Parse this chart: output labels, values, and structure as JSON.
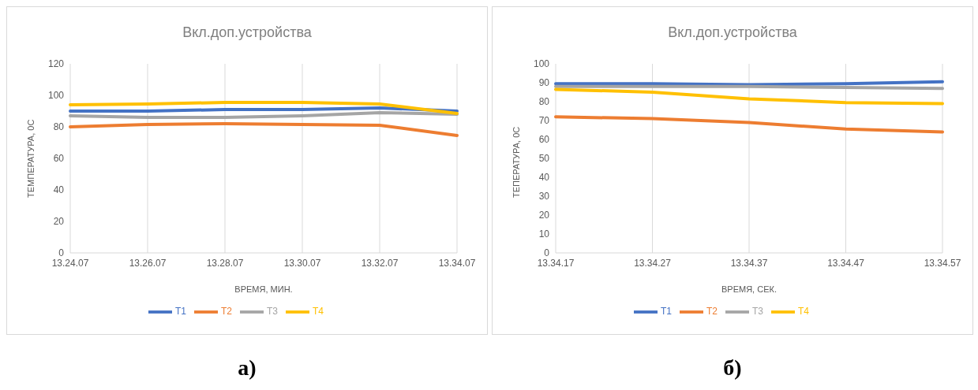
{
  "chart_data": [
    {
      "type": "line",
      "title": "Вкл.доп.устройства",
      "xlabel": "ВРЕМЯ, МИН.",
      "ylabel": "ТЕМПЕРАТУРА, 0С",
      "categories": [
        "13.24.07",
        "13.26.07",
        "13.28.07",
        "13.30.07",
        "13.32.07",
        "13.34.07"
      ],
      "ylim": [
        0,
        120
      ],
      "yticks": [
        0,
        20,
        40,
        60,
        80,
        100,
        120
      ],
      "grid": "x",
      "legend": "bottom",
      "marker": "none",
      "line_style": "solid",
      "annotations": [
        "а)"
      ],
      "series": [
        {
          "name": "T1",
          "color": "#4472c4",
          "values": [
            90,
            90,
            91,
            91,
            92,
            90
          ]
        },
        {
          "name": "T2",
          "color": "#ed7d31",
          "values": [
            80,
            81.5,
            82,
            81.5,
            81,
            74.5
          ]
        },
        {
          "name": "T3",
          "color": "#a5a5a5",
          "values": [
            87,
            86,
            86,
            87,
            89,
            88
          ]
        },
        {
          "name": "T4",
          "color": "#ffc000",
          "values": [
            94,
            94.5,
            95.5,
            95.5,
            94.5,
            88.5
          ]
        }
      ]
    },
    {
      "type": "line",
      "title": "Вкл.доп.устройства",
      "xlabel": "ВРЕМЯ, СЕК.",
      "ylabel": "ТЕПЕРАТУРА, 0С",
      "categories": [
        "13.34.17",
        "13.34.27",
        "13.34.37",
        "13.34.47",
        "13.34.57"
      ],
      "ylim": [
        0,
        100
      ],
      "yticks": [
        0,
        10,
        20,
        30,
        40,
        50,
        60,
        70,
        80,
        90,
        100
      ],
      "grid": "x",
      "legend": "bottom",
      "marker": "none",
      "line_style": "solid",
      "annotations": [
        "б)"
      ],
      "series": [
        {
          "name": "T1",
          "color": "#4472c4",
          "values": [
            89.5,
            89.5,
            89,
            89.5,
            90.5
          ]
        },
        {
          "name": "T2",
          "color": "#ed7d31",
          "values": [
            72,
            71,
            69,
            65.5,
            64
          ]
        },
        {
          "name": "T3",
          "color": "#a5a5a5",
          "values": [
            88,
            88,
            88,
            87.5,
            87
          ]
        },
        {
          "name": "T4",
          "color": "#ffc000",
          "values": [
            86.5,
            85,
            81.5,
            79.5,
            79
          ]
        }
      ]
    }
  ]
}
